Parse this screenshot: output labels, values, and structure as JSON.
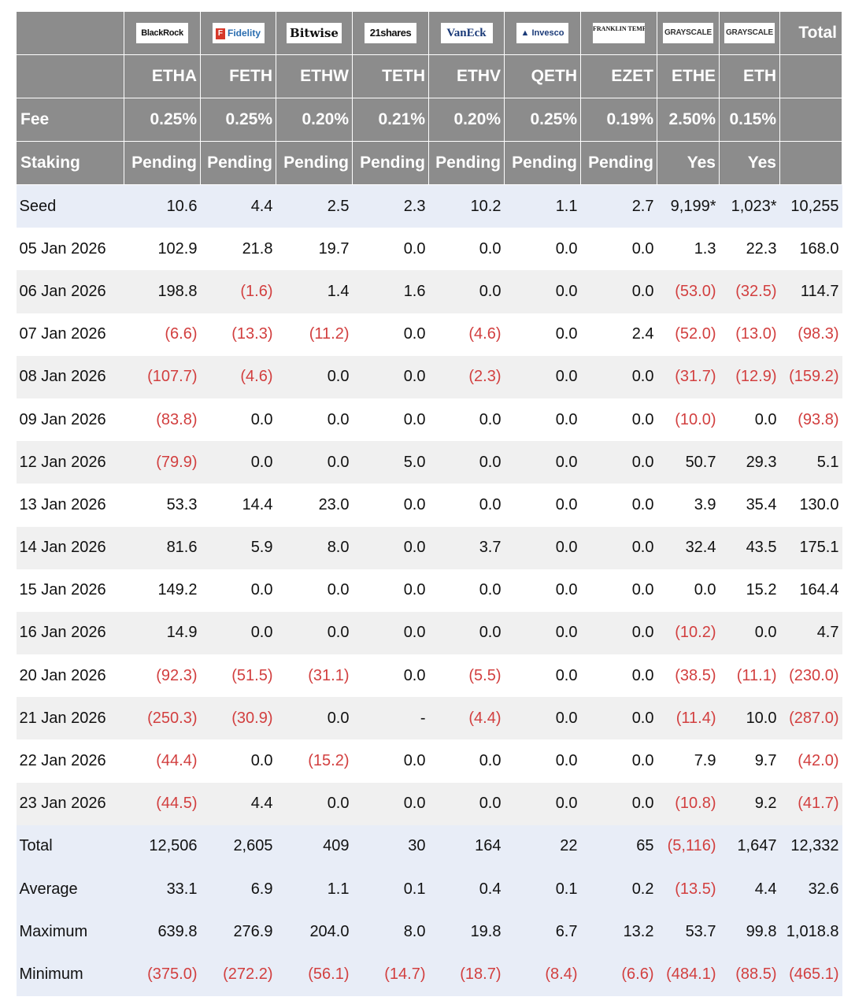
{
  "issuers": [
    {
      "logo_name": "blackrock-logo",
      "text": "BlackRock"
    },
    {
      "logo_name": "fidelity-logo",
      "text": "Fidelity",
      "mark": "F"
    },
    {
      "logo_name": "bitwise-logo",
      "text": "Bitwise"
    },
    {
      "logo_name": "21shares-logo",
      "text": "21shares"
    },
    {
      "logo_name": "vaneck-logo",
      "text": "VanEck"
    },
    {
      "logo_name": "invesco-logo",
      "text": "Invesco"
    },
    {
      "logo_name": "franklin-templeton-logo",
      "text": "FRANKLIN TEMPLETON"
    },
    {
      "logo_name": "grayscale-logo",
      "text": "GRAYSCALE"
    },
    {
      "logo_name": "grayscale-logo-2",
      "text": "GRAYSCALE"
    }
  ],
  "header": {
    "total_label": "Total",
    "tickers": [
      "ETHA",
      "FETH",
      "ETHW",
      "TETH",
      "ETHV",
      "QETH",
      "EZET",
      "ETHE",
      "ETH"
    ],
    "fee_label": "Fee",
    "fees": [
      "0.25%",
      "0.25%",
      "0.20%",
      "0.21%",
      "0.20%",
      "0.25%",
      "0.19%",
      "2.50%",
      "0.15%"
    ],
    "staking_label": "Staking",
    "staking": [
      "Pending",
      "Pending",
      "Pending",
      "Pending",
      "Pending",
      "Pending",
      "Pending",
      "Yes",
      "Yes"
    ]
  },
  "rows": [
    {
      "label": "Seed",
      "values": [
        "10.6",
        "4.4",
        "2.5",
        "2.3",
        "10.2",
        "1.1",
        "2.7",
        "9,199*",
        "1,023*",
        "10,255"
      ]
    },
    {
      "label": "05 Jan 2026",
      "values": [
        "102.9",
        "21.8",
        "19.7",
        "0.0",
        "0.0",
        "0.0",
        "0.0",
        "1.3",
        "22.3",
        "168.0"
      ]
    },
    {
      "label": "06 Jan 2026",
      "values": [
        "198.8",
        "(1.6)",
        "1.4",
        "1.6",
        "0.0",
        "0.0",
        "0.0",
        "(53.0)",
        "(32.5)",
        "114.7"
      ]
    },
    {
      "label": "07 Jan 2026",
      "values": [
        "(6.6)",
        "(13.3)",
        "(11.2)",
        "0.0",
        "(4.6)",
        "0.0",
        "2.4",
        "(52.0)",
        "(13.0)",
        "(98.3)"
      ]
    },
    {
      "label": "08 Jan 2026",
      "values": [
        "(107.7)",
        "(4.6)",
        "0.0",
        "0.0",
        "(2.3)",
        "0.0",
        "0.0",
        "(31.7)",
        "(12.9)",
        "(159.2)"
      ]
    },
    {
      "label": "09 Jan 2026",
      "values": [
        "(83.8)",
        "0.0",
        "0.0",
        "0.0",
        "0.0",
        "0.0",
        "0.0",
        "(10.0)",
        "0.0",
        "(93.8)"
      ]
    },
    {
      "label": "12 Jan 2026",
      "values": [
        "(79.9)",
        "0.0",
        "0.0",
        "5.0",
        "0.0",
        "0.0",
        "0.0",
        "50.7",
        "29.3",
        "5.1"
      ]
    },
    {
      "label": "13 Jan 2026",
      "values": [
        "53.3",
        "14.4",
        "23.0",
        "0.0",
        "0.0",
        "0.0",
        "0.0",
        "3.9",
        "35.4",
        "130.0"
      ]
    },
    {
      "label": "14 Jan 2026",
      "values": [
        "81.6",
        "5.9",
        "8.0",
        "0.0",
        "3.7",
        "0.0",
        "0.0",
        "32.4",
        "43.5",
        "175.1"
      ]
    },
    {
      "label": "15 Jan 2026",
      "values": [
        "149.2",
        "0.0",
        "0.0",
        "0.0",
        "0.0",
        "0.0",
        "0.0",
        "0.0",
        "15.2",
        "164.4"
      ]
    },
    {
      "label": "16 Jan 2026",
      "values": [
        "14.9",
        "0.0",
        "0.0",
        "0.0",
        "0.0",
        "0.0",
        "0.0",
        "(10.2)",
        "0.0",
        "4.7"
      ]
    },
    {
      "label": "20 Jan 2026",
      "values": [
        "(92.3)",
        "(51.5)",
        "(31.1)",
        "0.0",
        "(5.5)",
        "0.0",
        "0.0",
        "(38.5)",
        "(11.1)",
        "(230.0)"
      ]
    },
    {
      "label": "21 Jan 2026",
      "values": [
        "(250.3)",
        "(30.9)",
        "0.0",
        "-",
        "(4.4)",
        "0.0",
        "0.0",
        "(11.4)",
        "10.0",
        "(287.0)"
      ]
    },
    {
      "label": "22 Jan 2026",
      "values": [
        "(44.4)",
        "0.0",
        "(15.2)",
        "0.0",
        "0.0",
        "0.0",
        "0.0",
        "7.9",
        "9.7",
        "(42.0)"
      ]
    },
    {
      "label": "23 Jan 2026",
      "values": [
        "(44.5)",
        "4.4",
        "0.0",
        "0.0",
        "0.0",
        "0.0",
        "0.0",
        "(10.8)",
        "9.2",
        "(41.7)"
      ]
    }
  ],
  "summary": [
    {
      "label": "Total",
      "values": [
        "12,506",
        "2,605",
        "409",
        "30",
        "164",
        "22",
        "65",
        "(5,116)",
        "1,647",
        "12,332"
      ]
    },
    {
      "label": "Average",
      "values": [
        "33.1",
        "6.9",
        "1.1",
        "0.1",
        "0.4",
        "0.1",
        "0.2",
        "(13.5)",
        "4.4",
        "32.6"
      ]
    },
    {
      "label": "Maximum",
      "values": [
        "639.8",
        "276.9",
        "204.0",
        "8.0",
        "19.8",
        "6.7",
        "13.2",
        "53.7",
        "99.8",
        "1,018.8"
      ]
    },
    {
      "label": "Minimum",
      "values": [
        "(375.0)",
        "(272.2)",
        "(56.1)",
        "(14.7)",
        "(18.7)",
        "(8.4)",
        "(6.6)",
        "(484.1)",
        "(88.5)",
        "(465.1)"
      ]
    }
  ],
  "colors": {
    "header_bg": "#8c8c8c",
    "negative": "#d23f3f",
    "row_alt": "#f0f0f0",
    "summary_bg": "#e8edf7"
  }
}
